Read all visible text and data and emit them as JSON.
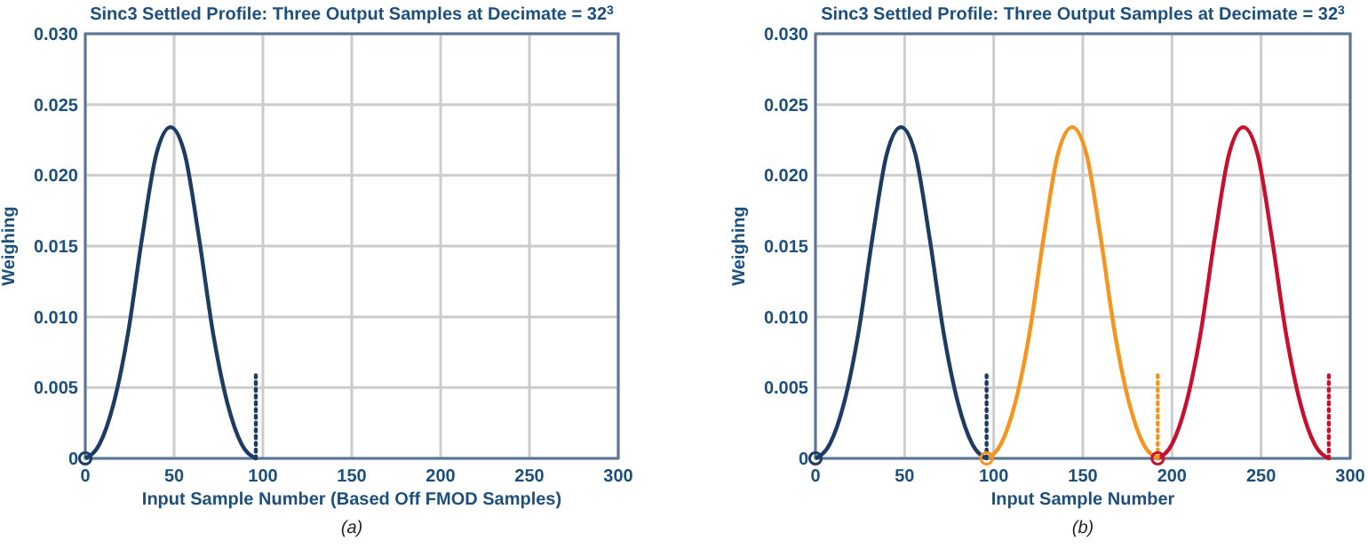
{
  "chart_data": [
    {
      "type": "line",
      "title": "Sinc3 Settled Profile: Three Output Samples at Decimate = 32$^{3}$",
      "xlabel": "Input Sample Number (Based Off FMOD Samples)",
      "ylabel": "Weighing",
      "annotations": [
        "(a)"
      ],
      "xlim": [
        0,
        300
      ],
      "ylim": [
        0,
        0.03
      ],
      "xticks": [
        0,
        50,
        100,
        150,
        200,
        250,
        300
      ],
      "yticks": [
        0,
        {
          "value": 0.005,
          "label": "0.005"
        },
        {
          "value": 0.01,
          "label": "0.010"
        },
        {
          "value": 0.015,
          "label": "0.015"
        },
        {
          "value": 0.02,
          "label": "0.020"
        },
        {
          "value": 0.025,
          "label": "0.025"
        },
        {
          "value": 0.03,
          "label": "0.030"
        }
      ],
      "grid": true,
      "series": [
        {
          "color": "#1d3c63",
          "x": [
            0,
            8,
            16,
            24,
            32,
            40,
            48,
            56,
            64,
            72,
            80,
            88,
            96
          ],
          "values": [
            0,
            0.001,
            0.0039,
            0.0088,
            0.0156,
            0.0215,
            0.0234,
            0.0215,
            0.0156,
            0.0088,
            0.0039,
            0.001,
            0
          ]
        },
        {
          "color": "#1d3c63",
          "line_style": "dotted",
          "x": [
            96,
            96
          ],
          "values": [
            0,
            0.006
          ]
        },
        {
          "type": "scatter",
          "marker": "circle",
          "colors": [
            "#1d3c63"
          ],
          "x": [
            0
          ],
          "values": [
            0
          ]
        }
      ]
    },
    {
      "type": "line",
      "title": "Sinc3 Settled Profile: Three Output Samples at Decimate = 32$^{3}$",
      "xlabel": "Input Sample Number",
      "ylabel": "Weighing",
      "annotations": [
        "(b)"
      ],
      "xlim": [
        0,
        300
      ],
      "ylim": [
        0,
        0.03
      ],
      "xticks": [
        0,
        50,
        100,
        150,
        200,
        250,
        300
      ],
      "yticks": [
        0,
        {
          "value": 0.005,
          "label": "0.005"
        },
        {
          "value": 0.01,
          "label": "0.010"
        },
        {
          "value": 0.015,
          "label": "0.015"
        },
        {
          "value": 0.02,
          "label": "0.020"
        },
        {
          "value": 0.025,
          "label": "0.025"
        },
        {
          "value": 0.03,
          "label": "0.030"
        }
      ],
      "grid": true,
      "series": [
        {
          "color": "#1d3c63",
          "x": [
            0,
            8,
            16,
            24,
            32,
            40,
            48,
            56,
            64,
            72,
            80,
            88,
            96
          ],
          "values": [
            0,
            0.001,
            0.0039,
            0.0088,
            0.0156,
            0.0215,
            0.0234,
            0.0215,
            0.0156,
            0.0088,
            0.0039,
            0.001,
            0
          ]
        },
        {
          "color": "#f7941d",
          "x": [
            96,
            104,
            112,
            120,
            128,
            136,
            144,
            152,
            160,
            168,
            176,
            184,
            192
          ],
          "values": [
            0,
            0.001,
            0.0039,
            0.0088,
            0.0156,
            0.0215,
            0.0234,
            0.0215,
            0.0156,
            0.0088,
            0.0039,
            0.001,
            0
          ]
        },
        {
          "color": "#c8102e",
          "x": [
            192,
            200,
            208,
            216,
            224,
            232,
            240,
            248,
            256,
            264,
            272,
            280,
            288
          ],
          "values": [
            0,
            0.001,
            0.0039,
            0.0088,
            0.0156,
            0.0215,
            0.0234,
            0.0215,
            0.0156,
            0.0088,
            0.0039,
            0.001,
            0
          ]
        },
        {
          "color": "#1d3c63",
          "line_style": "dotted",
          "x": [
            96,
            96
          ],
          "values": [
            0,
            0.006
          ]
        },
        {
          "color": "#f7941d",
          "line_style": "dotted",
          "x": [
            192,
            192
          ],
          "values": [
            0,
            0.006
          ]
        },
        {
          "color": "#c8102e",
          "line_style": "dotted",
          "x": [
            288,
            288
          ],
          "values": [
            0,
            0.006
          ]
        },
        {
          "type": "scatter",
          "marker": "circle",
          "colors": [
            "#1d3c63",
            "#f7941d",
            "#c8102e"
          ],
          "x": [
            0,
            96,
            192
          ],
          "values": [
            0,
            0,
            0
          ]
        }
      ]
    }
  ]
}
